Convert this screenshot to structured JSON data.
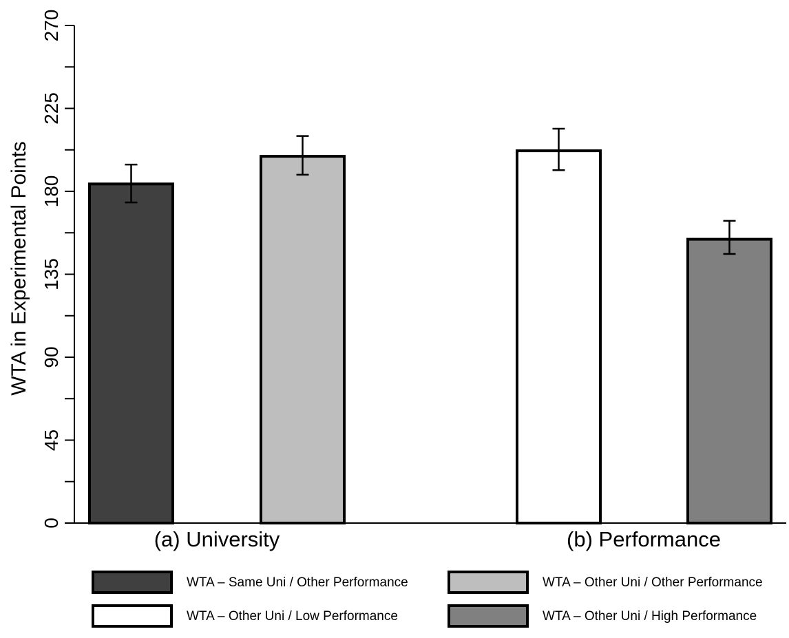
{
  "chart_data": {
    "type": "bar",
    "title": "",
    "xlabel": "",
    "ylabel": "WTA in Experimental Points",
    "ylim": [
      0,
      270
    ],
    "yticks": [
      0,
      45,
      90,
      135,
      180,
      225,
      270
    ],
    "grid": false,
    "legend_position": "bottom",
    "groups": [
      {
        "label": "(a) University",
        "bars": [
          {
            "series": "WTA – Same Uni / Other Performance",
            "value": 184,
            "err_low": 174,
            "err_high": 194.5
          },
          {
            "series": "WTA – Other Uni / Other Performance",
            "value": 199,
            "err_low": 189,
            "err_high": 210
          }
        ]
      },
      {
        "label": "(b) Performance",
        "bars": [
          {
            "series": "WTA – Other Uni / Low Performance",
            "value": 202,
            "err_low": 191.5,
            "err_high": 214
          },
          {
            "series": "WTA – Other Uni / High Performance",
            "value": 154,
            "err_low": 146,
            "err_high": 164
          }
        ]
      }
    ],
    "series": [
      {
        "name": "WTA – Same Uni / Other Performance",
        "color": "#404040"
      },
      {
        "name": "WTA – Other Uni / Other Performance",
        "color": "#bebebe"
      },
      {
        "name": "WTA – Other Uni / Low Performance",
        "color": "#ffffff"
      },
      {
        "name": "WTA – Other Uni / High Performance",
        "color": "#808080"
      }
    ]
  }
}
